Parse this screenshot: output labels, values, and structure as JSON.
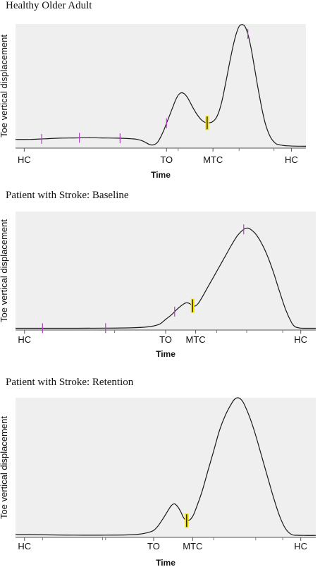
{
  "colors": {
    "plot_bg": "#efefef",
    "curve": "#1a1a1a",
    "event_marker": "#b43cc8",
    "mtc_highlight": "#f5e400",
    "mtc_line": "#111111"
  },
  "chart_data": [
    {
      "type": "line",
      "title": "Healthy Older Adult",
      "ylabel": "Toe vertical displacement",
      "xlabel": "Time",
      "xlim": [
        0,
        100
      ],
      "ylim": [
        0,
        100
      ],
      "grid": false,
      "x_ticks": [
        {
          "x": 3,
          "label": "HC"
        },
        {
          "x": 52,
          "label": "TO"
        },
        {
          "x": 68,
          "label": "MTC"
        },
        {
          "x": 95,
          "label": "HC"
        }
      ],
      "x_minor_ticks": [
        56,
        77,
        89
      ],
      "series": [
        {
          "x": [
            0,
            5,
            10,
            15,
            20,
            25,
            30,
            35,
            40,
            42,
            44,
            46,
            47,
            48,
            49,
            50,
            51,
            52,
            53,
            54,
            55,
            56,
            57,
            58,
            59,
            60,
            61,
            62,
            63,
            64,
            65,
            66,
            67,
            68,
            69,
            70,
            71,
            72,
            73,
            74,
            75,
            76,
            77,
            78,
            79,
            80,
            81,
            82,
            83,
            84,
            85,
            86,
            87,
            88,
            89,
            90,
            92,
            94,
            96,
            100
          ],
          "y": [
            7,
            7,
            7.5,
            8,
            8.2,
            8.4,
            8.2,
            8,
            7.5,
            7,
            5.5,
            3,
            2.5,
            3,
            5,
            9,
            14,
            20,
            26,
            32,
            38,
            42.5,
            44.5,
            44,
            41.5,
            37.5,
            33,
            29,
            25.5,
            22.8,
            21,
            20.3,
            20.5,
            21.5,
            24,
            29,
            37,
            48,
            60,
            72,
            83,
            92,
            98,
            99.5,
            98,
            92,
            82,
            69,
            55,
            42,
            30,
            20,
            13,
            8,
            5,
            3.2,
            2.2,
            1.8,
            1.6,
            1.5
          ]
        }
      ],
      "event_marks": [
        9,
        22,
        36,
        52,
        80
      ],
      "mtc_x": 66
    },
    {
      "type": "line",
      "title": "Patient with Stroke: Baseline",
      "ylabel": "Toe vertical displacement",
      "xlabel": "Time",
      "xlim": [
        0,
        100
      ],
      "ylim": [
        0,
        100
      ],
      "grid": false,
      "x_ticks": [
        {
          "x": 3,
          "label": "HC"
        },
        {
          "x": 50,
          "label": "TO"
        },
        {
          "x": 60,
          "label": "MTC"
        },
        {
          "x": 95,
          "label": "HC"
        }
      ],
      "x_minor_ticks": [
        33,
        67,
        77,
        89
      ],
      "series": [
        {
          "x": [
            0,
            10,
            20,
            30,
            40,
            45,
            48,
            50,
            52,
            54,
            56,
            57,
            58,
            59,
            60,
            61,
            62,
            64,
            66,
            68,
            70,
            72,
            74,
            76,
            77,
            78,
            80,
            82,
            84,
            86,
            88,
            90,
            92,
            93,
            94,
            95,
            96,
            98,
            100
          ],
          "y": [
            1.5,
            1.5,
            1.5,
            1.6,
            2,
            3,
            5,
            9,
            13,
            18,
            22,
            23,
            22.3,
            20.5,
            20.5,
            23,
            27,
            36,
            45,
            54,
            63,
            72,
            80,
            85,
            86,
            85.5,
            81,
            73,
            62,
            48,
            32,
            17,
            6,
            3,
            2,
            1.6,
            1.5,
            1.5,
            1.5
          ]
        }
      ],
      "event_marks": [
        9,
        30,
        53,
        76
      ],
      "mtc_x": 59
    },
    {
      "type": "line",
      "title": "Patient with Stroke: Retention",
      "ylabel": "Toe vertical displacement",
      "xlabel": "Time",
      "xlim": [
        0,
        100
      ],
      "ylim": [
        0,
        100
      ],
      "grid": false,
      "x_ticks": [
        {
          "x": 3,
          "label": "HC"
        },
        {
          "x": 46,
          "label": "TO"
        },
        {
          "x": 59,
          "label": "MTC"
        },
        {
          "x": 95,
          "label": "HC"
        }
      ],
      "x_minor_ticks": [
        9,
        29,
        30,
        66,
        80,
        89
      ],
      "series": [
        {
          "x": [
            0,
            5,
            10,
            20,
            30,
            40,
            45,
            47,
            49,
            51,
            52,
            53,
            54,
            55,
            56,
            57,
            58,
            59,
            60,
            62,
            64,
            66,
            68,
            70,
            72,
            73,
            74,
            75,
            76,
            78,
            80,
            82,
            84,
            86,
            88,
            90,
            92,
            94,
            96,
            100
          ],
          "y": [
            2,
            2,
            1.8,
            1.6,
            1.6,
            2,
            4,
            7,
            13,
            20,
            23,
            24,
            22,
            18.5,
            14,
            12,
            12.5,
            15,
            20,
            32,
            47,
            62,
            77,
            88,
            96,
            99,
            100,
            99,
            96,
            86,
            73,
            58,
            43,
            28,
            15,
            6,
            2,
            1.5,
            1.4,
            1.4
          ]
        }
      ],
      "event_marks": [],
      "mtc_x": 57
    }
  ]
}
